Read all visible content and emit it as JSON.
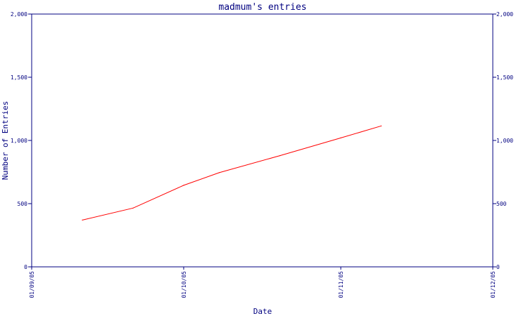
{
  "chart_data": {
    "type": "line",
    "title": "madmum's entries",
    "xlabel": "Date",
    "ylabel": "Number of Entries",
    "x_range": [
      "2005-09-01",
      "2005-12-01"
    ],
    "ylim": [
      0,
      2000
    ],
    "x_ticks": [
      {
        "date": "2005-09-01",
        "label": "01/09/05"
      },
      {
        "date": "2005-10-01",
        "label": "01/10/05"
      },
      {
        "date": "2005-11-01",
        "label": "01/11/05"
      },
      {
        "date": "2005-12-01",
        "label": "01/12/05"
      }
    ],
    "y_ticks": [
      {
        "value": 0,
        "label": "0"
      },
      {
        "value": 500,
        "label": "500"
      },
      {
        "value": 1000,
        "label": "1,000"
      },
      {
        "value": 1500,
        "label": "1,500"
      },
      {
        "value": 2000,
        "label": "2,000"
      }
    ],
    "grid": false,
    "series": [
      {
        "color": "#ff0000",
        "points": [
          {
            "x": "2005-09-11",
            "y": 370
          },
          {
            "x": "2005-09-21",
            "y": 465
          },
          {
            "x": "2005-10-01",
            "y": 645
          },
          {
            "x": "2005-10-08",
            "y": 745
          },
          {
            "x": "2005-10-20",
            "y": 880
          },
          {
            "x": "2005-11-01",
            "y": 1020
          },
          {
            "x": "2005-11-09",
            "y": 1115
          }
        ]
      }
    ],
    "colors": {
      "axis": "#000080",
      "text": "#000080",
      "line": "#ff0000",
      "background": "#ffffff"
    }
  }
}
